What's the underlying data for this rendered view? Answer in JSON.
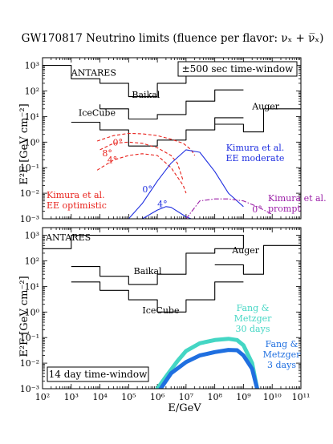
{
  "title": "GW170817 Neutrino limits (fluence per flavor: νₓ + ν̅ₓ)",
  "xlabel": "E/GeV",
  "ylabel": "E²F  [GeV cm⁻²]",
  "colors": {
    "limits": "#000000",
    "kimura_ee_optimistic": "#e8221c",
    "kimura_ee_moderate": "#1f2fe0",
    "kimura_prompt": "#9b1fa8",
    "fang_30": "#44d6c4",
    "fang_3": "#1f6fe0"
  },
  "chart_data": [
    {
      "type": "line",
      "panel": "top",
      "annotation": "±500 sec time-window",
      "x_scale": "log",
      "y_scale": "log",
      "xlim": [
        100,
        100000000000
      ],
      "ylim": [
        0.001,
        2000
      ],
      "x_ticks": [
        "10²",
        "10³",
        "10⁴",
        "10⁵",
        "10⁶",
        "10⁷",
        "10⁸",
        "10⁹",
        "10¹⁰",
        "10¹¹"
      ],
      "y_ticks": [
        "10⁻³",
        "10⁻²",
        "10⁻¹",
        "10⁰",
        "10¹",
        "10²",
        "10³"
      ],
      "series": [
        {
          "name": "ANTARES",
          "label_x": 1000,
          "label_y": 400,
          "style": "step",
          "color_key": "limits",
          "points": [
            [
              100,
              1000
            ],
            [
              1000,
              1000
            ],
            [
              1000,
              300
            ],
            [
              10000,
              300
            ],
            [
              10000,
              200
            ],
            [
              100000,
              200
            ],
            [
              100000,
              60
            ],
            [
              1000000,
              60
            ],
            [
              1000000,
              200
            ],
            [
              10000000,
              200
            ],
            [
              10000000,
              1000
            ]
          ]
        },
        {
          "name": "Baikal",
          "label_x": 130000,
          "label_y": 55,
          "style": "step",
          "color_key": "limits",
          "points": [
            [
              10000,
              30
            ],
            [
              10000,
              20
            ],
            [
              100000,
              20
            ],
            [
              100000,
              8
            ],
            [
              1000000,
              8
            ],
            [
              1000000,
              12
            ],
            [
              10000000,
              12
            ],
            [
              10000000,
              40
            ],
            [
              100000000,
              40
            ],
            [
              100000000,
              110
            ],
            [
              1000000000,
              110
            ]
          ]
        },
        {
          "name": "IceCube",
          "label_x": 1800,
          "label_y": 10.5,
          "style": "step",
          "color_key": "limits",
          "points": [
            [
              1000,
              6
            ],
            [
              10000,
              6
            ],
            [
              10000,
              3
            ],
            [
              100000,
              3
            ],
            [
              100000,
              0.7
            ],
            [
              1000000,
              0.7
            ],
            [
              1000000,
              1.2
            ],
            [
              10000000,
              1.2
            ],
            [
              10000000,
              3
            ],
            [
              100000000,
              3
            ],
            [
              100000000,
              9
            ],
            [
              1000000000,
              9
            ]
          ]
        },
        {
          "name": "Auger",
          "label_x": 2000000000,
          "label_y": 19,
          "style": "step",
          "color_key": "limits",
          "points": [
            [
              100000000,
              5
            ],
            [
              1000000000,
              5
            ],
            [
              1000000000,
              2.5
            ],
            [
              5000000000,
              2.5
            ],
            [
              5000000000,
              20
            ],
            [
              100000000000,
              20
            ]
          ]
        },
        {
          "name": "0°",
          "label_x": 28000,
          "label_y": 0.75,
          "style": "dashed",
          "color_key": "kimura_ee_optimistic",
          "points": [
            [
              8000,
              1.1
            ],
            [
              30000,
              1.8
            ],
            [
              100000,
              2.2
            ],
            [
              300000,
              2.1
            ],
            [
              1000000,
              1.8
            ],
            [
              3000000,
              1.3
            ],
            [
              8000000,
              0.9
            ],
            [
              15000000,
              0.5
            ],
            [
              20000000,
              0.3
            ]
          ]
        },
        {
          "name": "4°",
          "label_x": 18000,
          "label_y": 0.15,
          "style": "dashed",
          "color_key": "kimura_ee_optimistic",
          "points": [
            [
              8000,
              0.08
            ],
            [
              30000,
              0.2
            ],
            [
              100000,
              0.3
            ],
            [
              300000,
              0.35
            ],
            [
              1000000,
              0.3
            ],
            [
              3000000,
              0.1
            ],
            [
              8000000,
              0.02
            ],
            [
              10000000,
              0.01
            ]
          ]
        },
        {
          "name": "8°",
          "label_x": 12000,
          "label_y": 0.28,
          "style": "dashed",
          "color_key": "kimura_ee_optimistic",
          "points": [
            [
              10000,
              0.5
            ],
            [
              30000,
              0.9
            ],
            [
              100000,
              1.0
            ],
            [
              300000,
              0.9
            ],
            [
              1000000,
              0.6
            ],
            [
              3000000,
              0.3
            ],
            [
              5000000,
              0.15
            ],
            [
              8000000,
              0.03
            ]
          ]
        },
        {
          "name": "0°",
          "label_x": 300000,
          "label_y": 0.011,
          "style": "solid",
          "color_key": "kimura_ee_moderate",
          "points": [
            [
              100000,
              0.001
            ],
            [
              300000,
              0.004
            ],
            [
              1000000,
              0.03
            ],
            [
              3000000,
              0.15
            ],
            [
              10000000,
              0.5
            ],
            [
              30000000,
              0.4
            ],
            [
              100000000,
              0.07
            ],
            [
              300000000,
              0.01
            ],
            [
              1000000000,
              0.003
            ]
          ]
        },
        {
          "name": "4°",
          "label_x": 1000000,
          "label_y": 0.0028,
          "style": "solid",
          "color_key": "kimura_ee_moderate",
          "points": [
            [
              300000,
              0.001
            ],
            [
              1000000,
              0.0022
            ],
            [
              2000000,
              0.003
            ],
            [
              3000000,
              0.0028
            ],
            [
              10000000,
              0.0012
            ],
            [
              15000000,
              0.001
            ]
          ]
        },
        {
          "name": "0°",
          "label_x": 2000000000,
          "label_y": 0.0018,
          "style": "dashdot",
          "color_key": "kimura_prompt",
          "points": [
            [
              10000000,
              0.001
            ],
            [
              30000000,
              0.005
            ],
            [
              100000000,
              0.006
            ],
            [
              300000000,
              0.006
            ],
            [
              1000000000,
              0.005
            ],
            [
              3000000000,
              0.003
            ],
            [
              10000000000,
              0.0015
            ]
          ]
        }
      ],
      "annotations": {
        "optimistic": [
          "Kimura et al.",
          "EE optimistic"
        ],
        "moderate": [
          "Kimura et al.",
          "EE moderate"
        ],
        "prompt": [
          "Kimura et al.",
          "prompt"
        ]
      }
    },
    {
      "type": "line",
      "panel": "bottom",
      "annotation": "14 day time-window",
      "x_scale": "log",
      "y_scale": "log",
      "xlim": [
        100,
        100000000000
      ],
      "ylim": [
        0.001,
        2000
      ],
      "series": [
        {
          "name": "ANTARES",
          "label_x": 130,
          "label_y": 620,
          "style": "step",
          "color_key": "limits",
          "points": [
            [
              100,
              300
            ],
            [
              1000,
              300
            ],
            [
              1000,
              1000
            ],
            [
              1000000000,
              1000
            ],
            [
              1000000000,
              300
            ]
          ]
        },
        {
          "name": "Baikal",
          "label_x": 150000,
          "label_y": 30,
          "style": "step",
          "color_key": "limits",
          "points": [
            [
              1000,
              60
            ],
            [
              10000,
              60
            ],
            [
              10000,
              25
            ],
            [
              100000,
              25
            ],
            [
              100000,
              12
            ],
            [
              1000000,
              12
            ],
            [
              1000000,
              30
            ],
            [
              10000000,
              30
            ],
            [
              10000000,
              200
            ],
            [
              100000000,
              200
            ],
            [
              100000000,
              300
            ],
            [
              1000000000,
              300
            ]
          ]
        },
        {
          "name": "IceCube",
          "label_x": 300000,
          "label_y": 0.9,
          "style": "step",
          "color_key": "limits",
          "points": [
            [
              1000,
              15
            ],
            [
              10000,
              15
            ],
            [
              10000,
              7
            ],
            [
              100000,
              7
            ],
            [
              100000,
              3
            ],
            [
              1000000,
              3
            ],
            [
              1000000,
              1
            ],
            [
              10000000,
              1
            ],
            [
              10000000,
              3
            ],
            [
              100000000,
              3
            ],
            [
              100000000,
              15
            ],
            [
              1000000000,
              15
            ]
          ]
        },
        {
          "name": "Auger",
          "label_x": 400000000,
          "label_y": 200,
          "style": "step",
          "color_key": "limits",
          "points": [
            [
              100000000,
              70
            ],
            [
              1000000000,
              70
            ],
            [
              1000000000,
              30
            ],
            [
              5000000000,
              30
            ],
            [
              5000000000,
              400
            ],
            [
              100000000000,
              400
            ]
          ]
        },
        {
          "name": "Fang & Metzger 30 days",
          "style": "thick",
          "color_key": "fang_30",
          "points": [
            [
              1000000,
              0.001
            ],
            [
              2000000,
              0.003
            ],
            [
              5000000,
              0.012
            ],
            [
              10000000,
              0.03
            ],
            [
              30000000,
              0.06
            ],
            [
              100000000,
              0.08
            ],
            [
              300000000,
              0.09
            ],
            [
              600000000,
              0.08
            ],
            [
              1000000000,
              0.05
            ],
            [
              2000000000,
              0.01
            ],
            [
              3000000000,
              0.001
            ]
          ]
        },
        {
          "name": "Fang & Metzger 3 days",
          "style": "thick",
          "color_key": "fang_3",
          "points": [
            [
              1300000,
              0.001
            ],
            [
              3000000,
              0.004
            ],
            [
              10000000,
              0.011
            ],
            [
              30000000,
              0.02
            ],
            [
              100000000,
              0.027
            ],
            [
              300000000,
              0.033
            ],
            [
              600000000,
              0.032
            ],
            [
              1000000000,
              0.02
            ],
            [
              2000000000,
              0.006
            ],
            [
              3000000000,
              0.001
            ]
          ]
        }
      ],
      "annotations": {
        "fang30": [
          "Fang &",
          "Metzger",
          "30 days"
        ],
        "fang3": [
          "Fang &",
          "Metzger",
          "3 days"
        ]
      }
    }
  ]
}
